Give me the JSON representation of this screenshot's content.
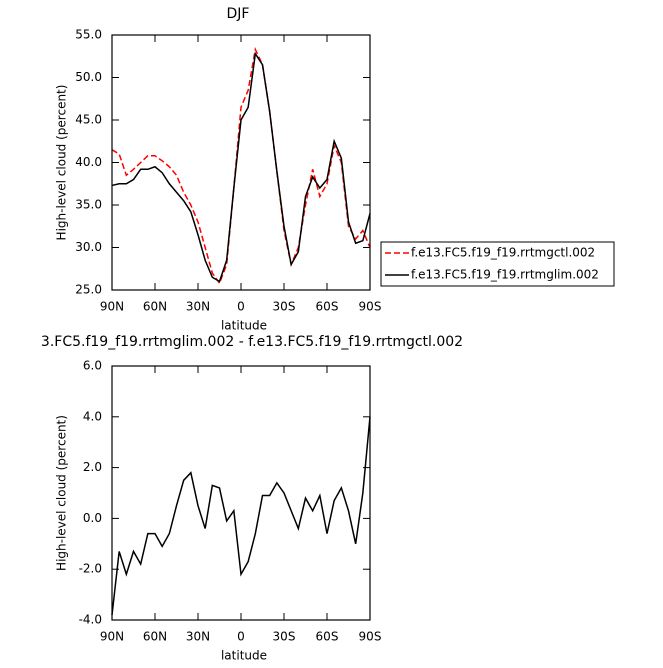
{
  "chart_data": [
    {
      "type": "line",
      "title": "DJF",
      "xlabel": "latitude",
      "ylabel": "High-level cloud (percent)",
      "x": [
        90,
        85,
        80,
        75,
        70,
        65,
        60,
        55,
        50,
        45,
        40,
        35,
        30,
        25,
        20,
        15,
        10,
        5,
        0,
        -5,
        -10,
        -15,
        -20,
        -25,
        -30,
        -35,
        -40,
        -45,
        -50,
        -55,
        -60,
        -65,
        -70,
        -75,
        -80,
        -85,
        -90
      ],
      "series": [
        {
          "name": "f.e13.FC5.f19_f19.rrtmgctl.002",
          "color": "#ff0000",
          "dash": true,
          "values": [
            41.5,
            41.0,
            38.5,
            39.2,
            40.0,
            40.8,
            40.8,
            40.2,
            39.5,
            38.5,
            36.5,
            35.0,
            33.0,
            30.0,
            27.0,
            25.8,
            28.0,
            37.0,
            46.5,
            48.5,
            53.3,
            51.5,
            46.0,
            39.0,
            32.0,
            28.0,
            30.0,
            35.0,
            39.2,
            36.0,
            37.5,
            42.0,
            40.0,
            32.5,
            31.0,
            32.0,
            30.0
          ]
        },
        {
          "name": "f.e13.FC5.f19_f19.rrtmglim.002",
          "color": "#000000",
          "dash": false,
          "values": [
            37.3,
            37.5,
            37.5,
            38.0,
            39.2,
            39.2,
            39.5,
            38.8,
            37.5,
            36.5,
            35.5,
            34.2,
            31.5,
            28.5,
            26.5,
            26.0,
            28.5,
            37.0,
            45.0,
            46.5,
            52.8,
            51.5,
            46.0,
            39.0,
            32.5,
            28.0,
            29.5,
            36.0,
            38.3,
            37.0,
            38.0,
            42.5,
            40.5,
            33.0,
            30.5,
            30.8,
            34.0
          ]
        }
      ],
      "xlim": [
        90,
        -90
      ],
      "xticks": [
        {
          "value": 90,
          "label": "90N"
        },
        {
          "value": 60,
          "label": "60N"
        },
        {
          "value": 30,
          "label": "30N"
        },
        0,
        {
          "value": -30,
          "label": "30S"
        },
        {
          "value": -60,
          "label": "60S"
        },
        {
          "value": -90,
          "label": "90S"
        }
      ],
      "ylim": [
        25,
        55
      ],
      "yticks": [
        {
          "value": 25,
          "label": "25.0"
        },
        {
          "value": 30,
          "label": "30.0"
        },
        {
          "value": 35,
          "label": "35.0"
        },
        {
          "value": 40,
          "label": "40.0"
        },
        {
          "value": 45,
          "label": "45.0"
        },
        {
          "value": 50,
          "label": "50.0"
        },
        {
          "value": 55,
          "label": "55.0"
        }
      ],
      "legend": "outside-right"
    },
    {
      "type": "line",
      "title": "3.FC5.f19_f19.rrtmglim.002 - f.e13.FC5.f19_f19.rrtmgctl.002",
      "xlabel": "latitude",
      "ylabel": "High-level cloud (percent)",
      "x": [
        90,
        85,
        80,
        75,
        70,
        65,
        60,
        55,
        50,
        45,
        40,
        35,
        30,
        25,
        20,
        15,
        10,
        5,
        0,
        -5,
        -10,
        -15,
        -20,
        -25,
        -30,
        -35,
        -40,
        -45,
        -50,
        -55,
        -60,
        -65,
        -70,
        -75,
        -80,
        -85,
        -90
      ],
      "values": [
        -3.8,
        -1.3,
        -2.2,
        -1.3,
        -1.8,
        -0.6,
        -0.6,
        -1.1,
        -0.6,
        0.5,
        1.5,
        1.8,
        0.5,
        -0.4,
        1.3,
        1.2,
        -0.1,
        0.3,
        -2.2,
        -1.7,
        -0.6,
        0.9,
        0.9,
        1.4,
        1.0,
        0.3,
        -0.4,
        0.8,
        0.3,
        0.9,
        -0.6,
        0.7,
        1.2,
        0.3,
        -1.0,
        1.0,
        4.0
      ],
      "color": "#000000",
      "xlim": [
        90,
        -90
      ],
      "xticks": [
        {
          "value": 90,
          "label": "90N"
        },
        {
          "value": 60,
          "label": "60N"
        },
        {
          "value": 30,
          "label": "30N"
        },
        0,
        {
          "value": -30,
          "label": "30S"
        },
        {
          "value": -60,
          "label": "60S"
        },
        {
          "value": -90,
          "label": "90S"
        }
      ],
      "ylim": [
        -4,
        6
      ],
      "yticks": [
        {
          "value": -4,
          "label": "-4.0"
        },
        {
          "value": -2,
          "label": "-2.0"
        },
        {
          "value": 0,
          "label": "0.0"
        },
        {
          "value": 2,
          "label": "2.0"
        },
        {
          "value": 4,
          "label": "4.0"
        },
        {
          "value": 6,
          "label": "6.0"
        }
      ]
    }
  ]
}
